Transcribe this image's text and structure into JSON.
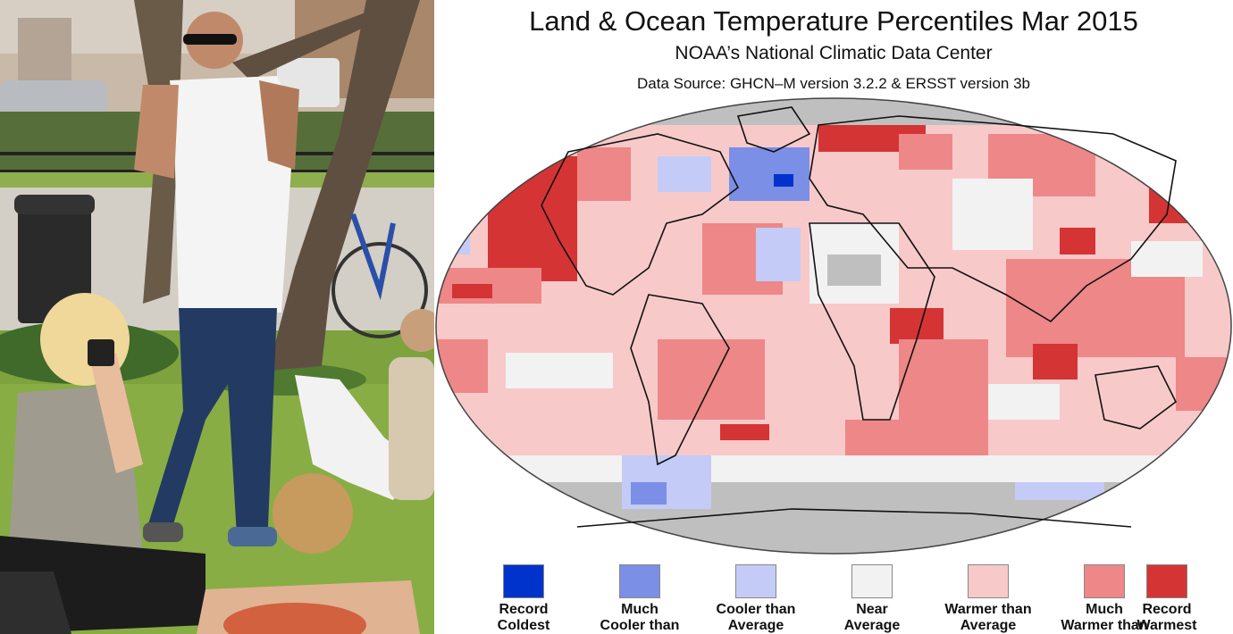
{
  "photo": {
    "description_icon": "park-scene-photo"
  },
  "map": {
    "title": "Land & Ocean Temperature Percentiles Mar 2015",
    "subtitle": "NOAA’s National Climatic Data Center",
    "source": "Data Source: GHCN–M version 3.2.2 & ERSST version 3b",
    "colors": {
      "record_coldest": "#0033cc",
      "much_cooler": "#7b8fe6",
      "cooler": "#c4cbf6",
      "near": "#f2f2f2",
      "warmer": "#f8c9c9",
      "much_warmer": "#ee8787",
      "record_warmest": "#d53434",
      "missing": "#bfbfbf"
    },
    "legend": [
      {
        "label": "Record\nColdest",
        "color": "#0033cc"
      },
      {
        "label": "Much\nCooler than",
        "color": "#7b8fe6"
      },
      {
        "label": "Cooler than\nAverage",
        "color": "#c4cbf6"
      },
      {
        "label": "Near\nAverage",
        "color": "#f2f2f2"
      },
      {
        "label": "Warmer than\nAverage",
        "color": "#f8c9c9"
      },
      {
        "label": "Much\nWarmer than",
        "color": "#ee8787"
      },
      {
        "label": "Record\nWarmest",
        "color": "#d53434"
      }
    ]
  }
}
